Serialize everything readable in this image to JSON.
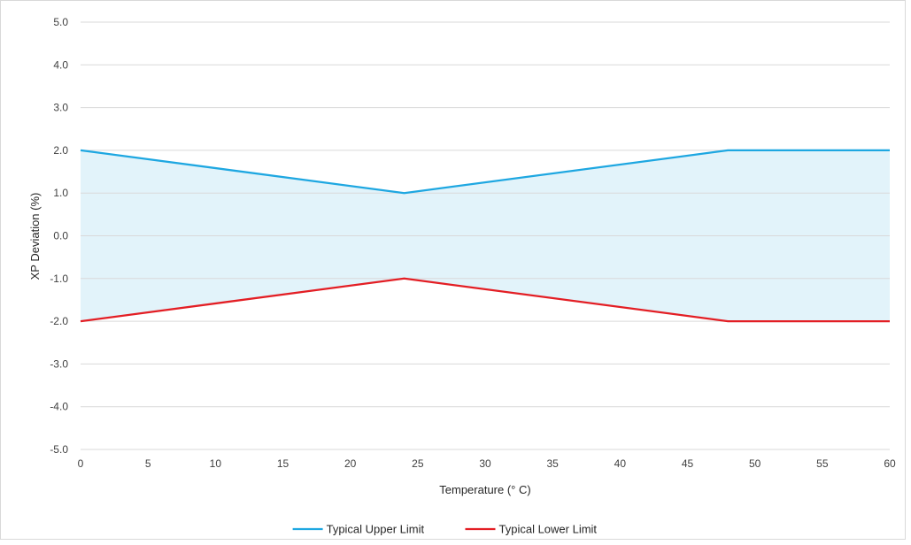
{
  "chart_data": {
    "type": "line",
    "title": "",
    "xlabel": "Temperature (° C)",
    "ylabel": "XP Deviation (%)",
    "xlim": [
      0,
      60
    ],
    "ylim": [
      -5,
      5
    ],
    "x_ticks": [
      0,
      5,
      10,
      15,
      20,
      25,
      30,
      35,
      40,
      45,
      50,
      55,
      60
    ],
    "y_ticks": [
      -5,
      -4,
      -3,
      -2,
      -1,
      0,
      1,
      2,
      3,
      4,
      5
    ],
    "x_tick_labels": [
      "0",
      "5",
      "10",
      "15",
      "20",
      "25",
      "30",
      "35",
      "40",
      "45",
      "50",
      "55",
      "60"
    ],
    "y_tick_labels": [
      "-5.0",
      "-4.0",
      "-3.0",
      "-2.0",
      "-1.0",
      "0.0",
      "1.0",
      "2.0",
      "3.0",
      "4.0",
      "5.0"
    ],
    "grid": "horizontal",
    "legend_position": "bottom",
    "fill_between": {
      "upper": "Typical Upper Limit",
      "lower": "Typical Lower Limit",
      "color": "#e2f3fa"
    },
    "series": [
      {
        "name": "Typical Upper Limit",
        "color": "#1ea7e1",
        "x": [
          0,
          24,
          48,
          60
        ],
        "y": [
          2.0,
          1.0,
          2.0,
          2.0
        ]
      },
      {
        "name": "Typical Lower Limit",
        "color": "#e31e24",
        "x": [
          0,
          24,
          48,
          60
        ],
        "y": [
          -2.0,
          -1.0,
          -2.0,
          -2.0
        ]
      }
    ]
  }
}
